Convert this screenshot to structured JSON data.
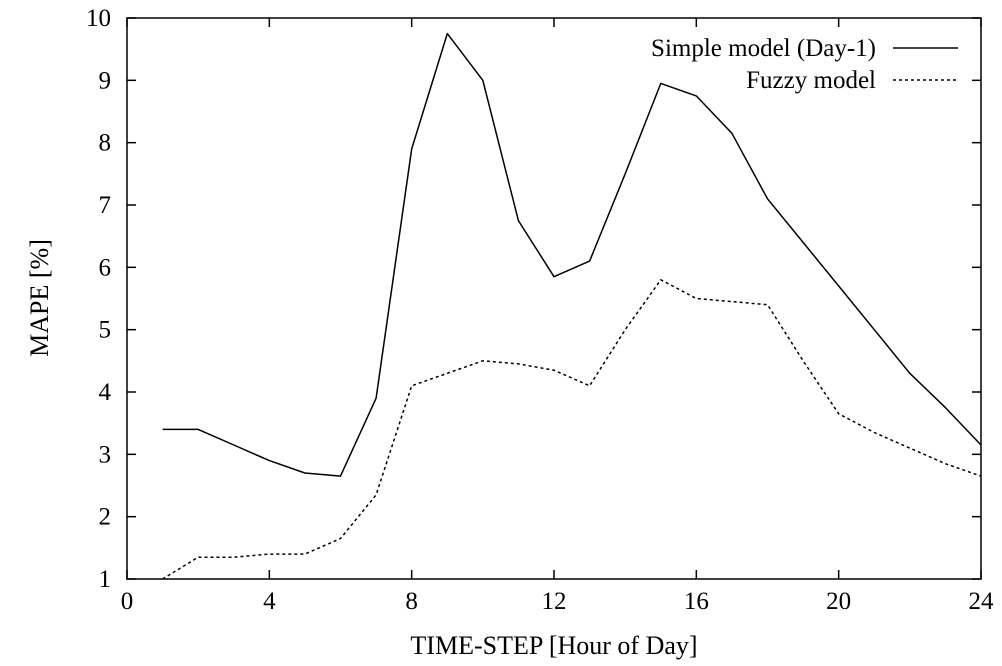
{
  "chart_data": {
    "type": "line",
    "title": "",
    "xlabel": "TIME-STEP [Hour of Day]",
    "ylabel": "MAPE [%]",
    "xlim": [
      0,
      24
    ],
    "ylim": [
      1,
      10
    ],
    "xticks": [
      0,
      4,
      8,
      12,
      16,
      20,
      24
    ],
    "yticks": [
      1,
      2,
      3,
      4,
      5,
      6,
      7,
      8,
      9,
      10
    ],
    "grid": false,
    "legend": "top-right",
    "series": [
      {
        "name": "Simple model (Day-1)",
        "style": "solid",
        "color": "#000000",
        "x": [
          1,
          2,
          3,
          4,
          5,
          6,
          7,
          8,
          9,
          10,
          11,
          12,
          13,
          14,
          15,
          16,
          17,
          18,
          19,
          20,
          21,
          22,
          23,
          24
        ],
        "y": [
          3.4,
          3.4,
          3.15,
          2.9,
          2.7,
          2.65,
          3.9,
          7.9,
          9.75,
          9.0,
          6.75,
          5.85,
          6.1,
          7.5,
          8.95,
          8.75,
          8.15,
          7.1,
          6.4,
          5.7,
          5.0,
          4.3,
          3.75,
          3.15
        ]
      },
      {
        "name": "Fuzzy model",
        "style": "dashed",
        "color": "#000000",
        "x": [
          1,
          2,
          3,
          4,
          5,
          6,
          7,
          8,
          9,
          10,
          11,
          12,
          13,
          14,
          15,
          16,
          17,
          18,
          19,
          20,
          21,
          22,
          23,
          24
        ],
        "y": [
          1.0,
          1.35,
          1.35,
          1.4,
          1.4,
          1.65,
          2.35,
          4.1,
          4.3,
          4.5,
          4.45,
          4.35,
          4.1,
          5.0,
          5.8,
          5.5,
          5.45,
          5.4,
          4.5,
          3.65,
          3.35,
          3.1,
          2.85,
          2.65
        ]
      }
    ]
  }
}
